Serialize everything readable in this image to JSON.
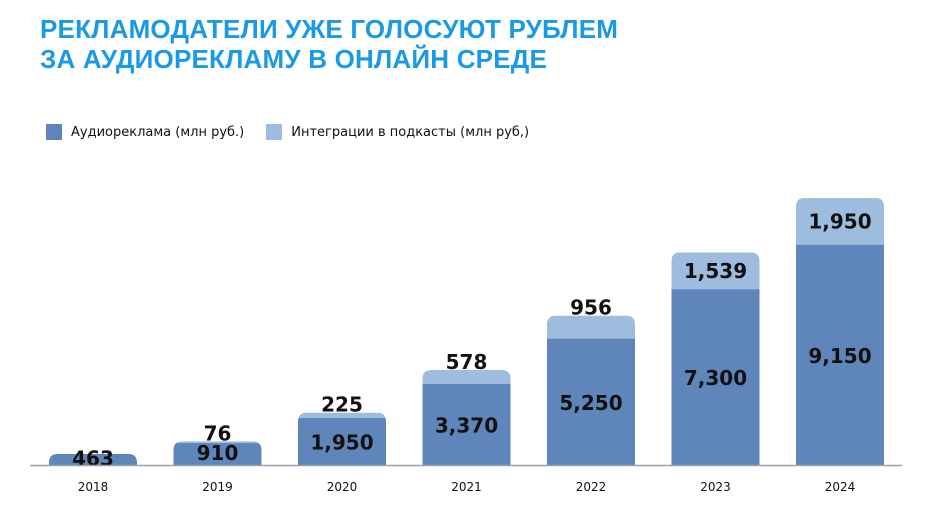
{
  "title": {
    "line1": "РЕКЛАМОДАТЕЛИ УЖЕ ГОЛОСУЮТ РУБЛЕМ",
    "line2": "ЗА АУДИОРЕКЛАМУ В ОНЛАЙН СРЕДЕ"
  },
  "colors": {
    "title": "#1a9ae6",
    "series_audio": "#5f86ba",
    "series_podcast": "#9dbcde",
    "baseline": "#9aa1ab",
    "label": "#111111"
  },
  "legend": {
    "audio": "Аудиореклама (млн руб.)",
    "podcast": "Интеграции в подкасты (млн руб,)"
  },
  "chart_data": {
    "type": "bar",
    "stacked": true,
    "categories": [
      "2018",
      "2019",
      "2020",
      "2021",
      "2022",
      "2023",
      "2024"
    ],
    "series": [
      {
        "name": "Аудиореклама (млн руб.)",
        "values": [
          463,
          910,
          1950,
          3370,
          5250,
          7300,
          9150
        ],
        "labels": [
          "463",
          "910",
          "1,950",
          "3,370",
          "5,250",
          "7,300",
          "9,150"
        ]
      },
      {
        "name": "Интеграции в подкасты (млн руб,)",
        "values": [
          0,
          76,
          225,
          578,
          956,
          1539,
          1950
        ],
        "labels": [
          "",
          "76",
          "225",
          "578",
          "956",
          "1,539",
          "1,950"
        ]
      }
    ],
    "grid": false,
    "legend_position": "top-left"
  }
}
